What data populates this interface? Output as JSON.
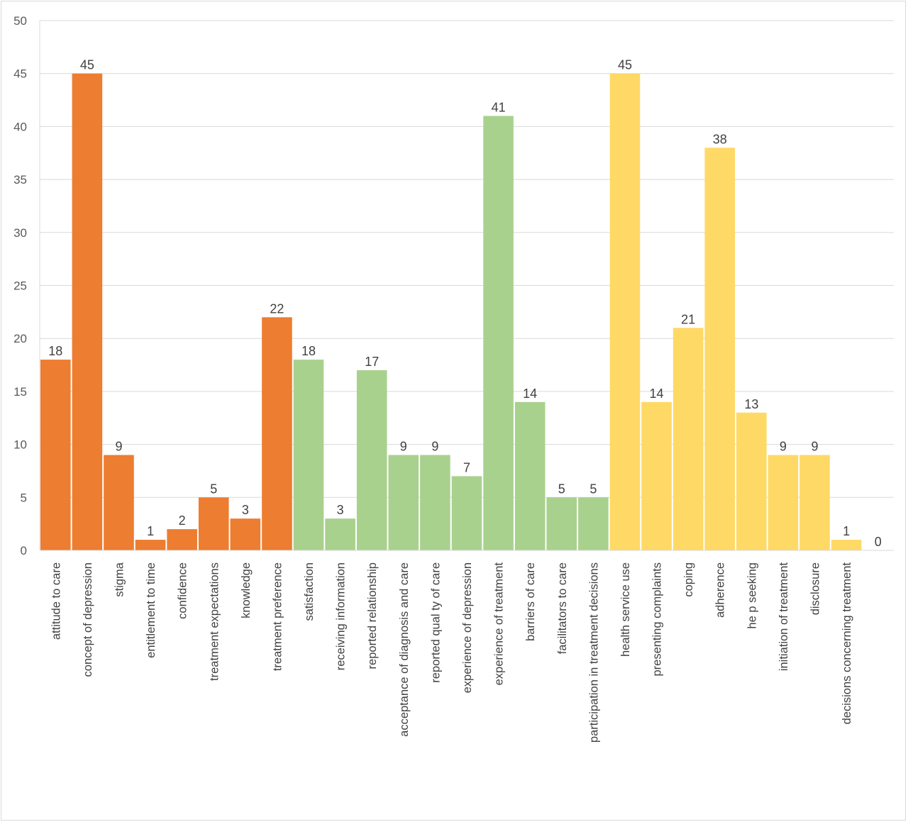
{
  "chart_data": {
    "type": "bar",
    "title": "",
    "xlabel": "",
    "ylabel": "",
    "ylim": [
      0,
      50
    ],
    "yticks": [
      0,
      5,
      10,
      15,
      20,
      25,
      30,
      35,
      40,
      45,
      50
    ],
    "grid": true,
    "legend": "none",
    "data_labels": true,
    "colors": {
      "group_1": "#ed7d31",
      "group_2": "#a9d18e",
      "group_3": "#ffd966",
      "gridline": "#d9d9d9",
      "axis_text": "#595959"
    },
    "categories": [
      "attitude to care",
      "concept of depression",
      "stigma",
      "entitlement to time",
      "confidence",
      "treatment expectations",
      "knowledge",
      "treatment preference",
      "satisfaction",
      "receiving information",
      "reported relationship",
      "acceptance of diagnosis and care",
      "reported qual ty of care",
      "experience of depression",
      "experience of treatment",
      "barriers of care",
      "facilitators to care",
      "participation in treatment decisions",
      "health service use",
      "presenting complaints",
      "coping",
      "adherence",
      "he p seeking",
      "initiation of treatment",
      "disclosure",
      "decisions concerning treatment",
      ""
    ],
    "values": [
      18,
      45,
      9,
      1,
      2,
      5,
      3,
      22,
      18,
      3,
      17,
      9,
      9,
      7,
      41,
      14,
      5,
      5,
      45,
      14,
      21,
      38,
      13,
      9,
      9,
      1,
      0
    ],
    "group_index": [
      0,
      0,
      0,
      0,
      0,
      0,
      0,
      0,
      1,
      1,
      1,
      1,
      1,
      1,
      1,
      1,
      1,
      1,
      2,
      2,
      2,
      2,
      2,
      2,
      2,
      2,
      2
    ]
  }
}
